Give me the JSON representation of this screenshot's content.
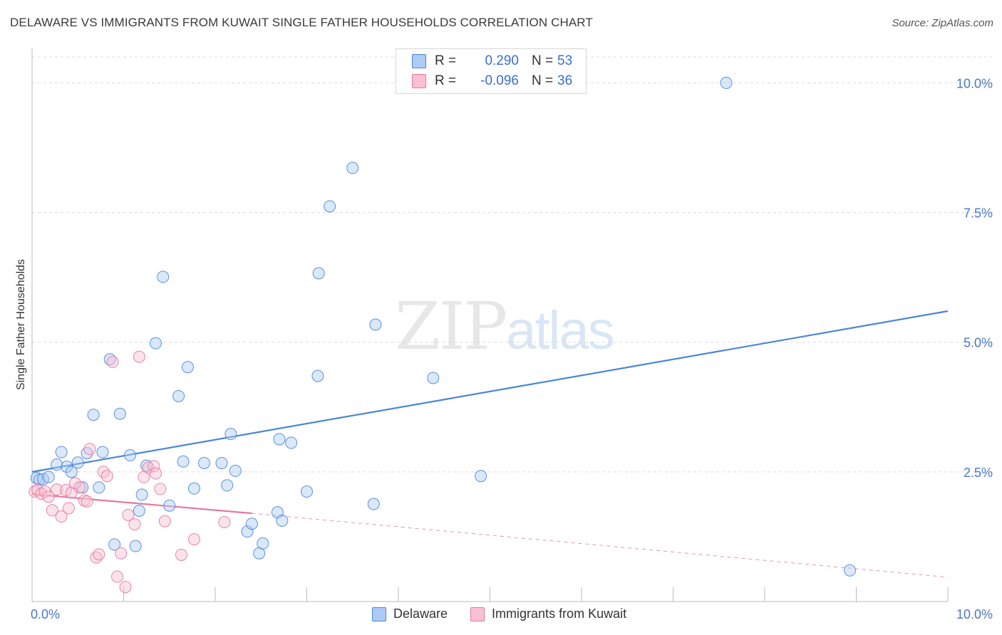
{
  "title": "DELAWARE VS IMMIGRANTS FROM KUWAIT SINGLE FATHER HOUSEHOLDS CORRELATION CHART",
  "source": "Source: ZipAtlas.com",
  "watermark": {
    "zip": "ZIP",
    "atlas": "atlas"
  },
  "legend": {
    "series": [
      {
        "name": "Delaware",
        "r_label": "R =",
        "r_value": "0.290",
        "n_label": "N =",
        "n_value": "53",
        "fill": "#aecbf5",
        "stroke": "#4a86d8"
      },
      {
        "name": "Immigrants from Kuwait",
        "r_label": "R =",
        "r_value": "-0.096",
        "n_label": "N =",
        "n_value": "36",
        "fill": "#f9c0d2",
        "stroke": "#e6789c"
      }
    ]
  },
  "chart_data": {
    "type": "scatter",
    "title": "DELAWARE VS IMMIGRANTS FROM KUWAIT SINGLE FATHER HOUSEHOLDS CORRELATION CHART",
    "xlabel": "",
    "ylabel": "Single Father Households",
    "xlim": [
      0,
      10
    ],
    "ylim": [
      0,
      10.5
    ],
    "x_tick_labels": [
      "0.0%",
      "10.0%"
    ],
    "y_ticks": [
      {
        "value": 2.5,
        "label": "2.5%"
      },
      {
        "value": 5.0,
        "label": "5.0%"
      },
      {
        "value": 7.5,
        "label": "7.5%"
      },
      {
        "value": 10.0,
        "label": "10.0%"
      }
    ],
    "grid": true,
    "legend_position": "top-center",
    "series": [
      {
        "name": "Delaware",
        "color": "#4a86d8",
        "fill": "#aecbf5",
        "points": [
          [
            0.05,
            2.38
          ],
          [
            0.08,
            2.35
          ],
          [
            0.12,
            2.36
          ],
          [
            0.18,
            2.4
          ],
          [
            0.27,
            2.64
          ],
          [
            0.32,
            2.88
          ],
          [
            0.38,
            2.6
          ],
          [
            0.43,
            2.5
          ],
          [
            0.5,
            2.68
          ],
          [
            0.55,
            2.2
          ],
          [
            0.6,
            2.86
          ],
          [
            0.67,
            3.6
          ],
          [
            0.73,
            2.2
          ],
          [
            0.77,
            2.88
          ],
          [
            0.85,
            4.67
          ],
          [
            0.96,
            3.62
          ],
          [
            1.07,
            2.82
          ],
          [
            1.13,
            1.07
          ],
          [
            1.17,
            1.75
          ],
          [
            1.2,
            2.06
          ],
          [
            1.25,
            2.62
          ],
          [
            1.35,
            4.98
          ],
          [
            1.43,
            6.26
          ],
          [
            1.5,
            1.85
          ],
          [
            1.6,
            3.96
          ],
          [
            1.65,
            2.7
          ],
          [
            1.7,
            4.52
          ],
          [
            1.77,
            2.18
          ],
          [
            1.88,
            2.67
          ],
          [
            2.07,
            2.67
          ],
          [
            2.13,
            2.24
          ],
          [
            2.17,
            3.23
          ],
          [
            2.22,
            2.52
          ],
          [
            2.35,
            1.35
          ],
          [
            2.4,
            1.5
          ],
          [
            2.48,
            0.93
          ],
          [
            2.52,
            1.12
          ],
          [
            2.68,
            1.72
          ],
          [
            2.7,
            3.13
          ],
          [
            2.73,
            1.56
          ],
          [
            2.83,
            3.06
          ],
          [
            3.0,
            2.12
          ],
          [
            3.12,
            4.35
          ],
          [
            3.13,
            6.33
          ],
          [
            3.25,
            7.62
          ],
          [
            3.5,
            8.36
          ],
          [
            3.73,
            1.88
          ],
          [
            3.75,
            5.34
          ],
          [
            4.38,
            4.31
          ],
          [
            4.9,
            2.42
          ],
          [
            7.58,
            10.0
          ],
          [
            8.93,
            0.6
          ],
          [
            0.9,
            1.1
          ]
        ]
      },
      {
        "name": "Immigrants from Kuwait",
        "color": "#e6789c",
        "fill": "#f9c0d2",
        "points": [
          [
            0.03,
            2.12
          ],
          [
            0.06,
            2.15
          ],
          [
            0.1,
            2.08
          ],
          [
            0.14,
            2.12
          ],
          [
            0.18,
            2.02
          ],
          [
            0.22,
            1.76
          ],
          [
            0.27,
            2.16
          ],
          [
            0.32,
            1.64
          ],
          [
            0.37,
            2.15
          ],
          [
            0.4,
            1.8
          ],
          [
            0.43,
            2.1
          ],
          [
            0.47,
            2.28
          ],
          [
            0.52,
            2.2
          ],
          [
            0.57,
            1.95
          ],
          [
            0.6,
            1.93
          ],
          [
            0.63,
            2.94
          ],
          [
            0.7,
            0.85
          ],
          [
            0.73,
            0.91
          ],
          [
            0.78,
            2.5
          ],
          [
            0.82,
            2.42
          ],
          [
            0.88,
            4.62
          ],
          [
            0.93,
            0.48
          ],
          [
            0.97,
            0.93
          ],
          [
            1.02,
            0.28
          ],
          [
            1.05,
            1.67
          ],
          [
            1.12,
            1.49
          ],
          [
            1.17,
            4.72
          ],
          [
            1.22,
            2.4
          ],
          [
            1.27,
            2.58
          ],
          [
            1.33,
            2.61
          ],
          [
            1.35,
            2.47
          ],
          [
            1.4,
            2.17
          ],
          [
            1.45,
            1.55
          ],
          [
            1.63,
            0.9
          ],
          [
            1.77,
            1.2
          ],
          [
            2.1,
            1.53
          ]
        ]
      }
    ],
    "trend_lines": [
      {
        "series": "Delaware",
        "x": [
          0.0,
          10.0
        ],
        "y": [
          2.5,
          5.6
        ],
        "style": "solid"
      },
      {
        "series": "Immigrants from Kuwait",
        "x": [
          0.0,
          2.4
        ],
        "y": [
          2.07,
          1.7
        ],
        "style": "solid"
      },
      {
        "series": "Immigrants from Kuwait",
        "x": [
          2.4,
          10.0
        ],
        "y": [
          1.7,
          0.47
        ],
        "style": "dashed"
      }
    ]
  }
}
